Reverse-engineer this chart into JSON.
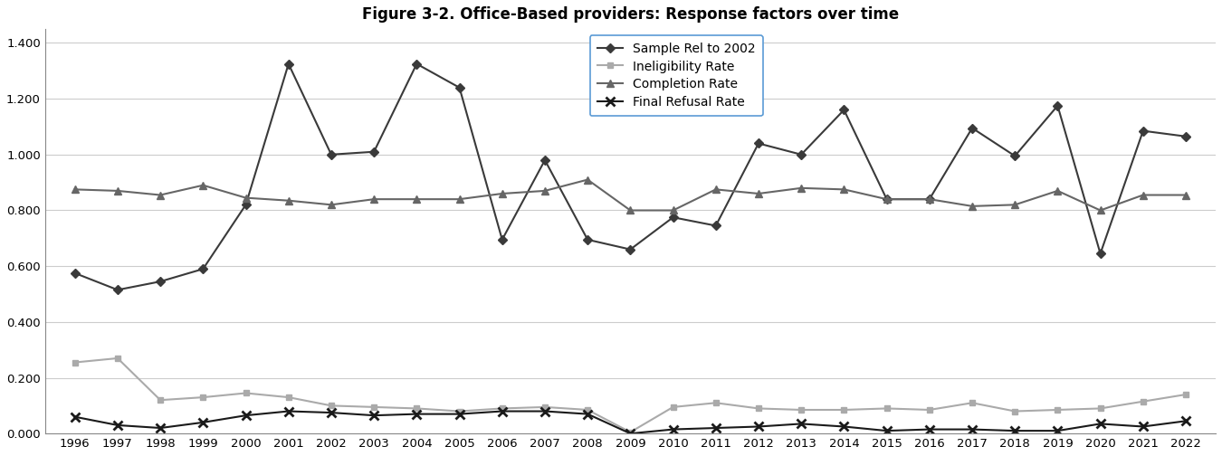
{
  "title": "Figure 3-2. Office-Based providers: Response factors over time",
  "years": [
    1996,
    1997,
    1998,
    1999,
    2000,
    2001,
    2002,
    2003,
    2004,
    2005,
    2006,
    2007,
    2008,
    2009,
    2010,
    2011,
    2012,
    2013,
    2014,
    2015,
    2016,
    2017,
    2018,
    2019,
    2020,
    2021,
    2022
  ],
  "sample_rel": [
    0.575,
    0.515,
    0.545,
    0.59,
    0.82,
    1.325,
    1.0,
    1.01,
    1.325,
    1.24,
    0.695,
    0.98,
    0.695,
    0.66,
    0.775,
    0.745,
    1.04,
    1.0,
    1.16,
    0.84,
    0.84,
    1.095,
    0.995,
    1.175,
    0.645,
    1.085,
    1.065
  ],
  "ineligibility": [
    0.255,
    0.27,
    0.12,
    0.13,
    0.145,
    0.13,
    0.1,
    0.095,
    0.09,
    0.08,
    0.09,
    0.095,
    0.085,
    0.005,
    0.095,
    0.11,
    0.09,
    0.085,
    0.085,
    0.09,
    0.085,
    0.11,
    0.08,
    0.085,
    0.09,
    0.115,
    0.14
  ],
  "completion": [
    0.875,
    0.87,
    0.855,
    0.89,
    0.845,
    0.835,
    0.82,
    0.84,
    0.84,
    0.84,
    0.86,
    0.87,
    0.91,
    0.8,
    0.8,
    0.875,
    0.86,
    0.88,
    0.875,
    0.84,
    0.84,
    0.815,
    0.82,
    0.87,
    0.8,
    0.855,
    0.855
  ],
  "final_refusal": [
    0.06,
    0.03,
    0.02,
    0.04,
    0.065,
    0.08,
    0.075,
    0.065,
    0.07,
    0.07,
    0.08,
    0.08,
    0.07,
    0.0,
    0.015,
    0.02,
    0.025,
    0.035,
    0.025,
    0.01,
    0.015,
    0.015,
    0.01,
    0.01,
    0.035,
    0.025,
    0.045
  ],
  "sample_color": "#3a3a3a",
  "ineligibility_color": "#aaaaaa",
  "completion_color": "#666666",
  "final_refusal_color": "#1a1a1a",
  "ylim_min": 0.0,
  "ylim_max": 1.45,
  "yticks": [
    0.0,
    0.2,
    0.4,
    0.6,
    0.8,
    1.0,
    1.2,
    1.4
  ],
  "ytick_labels": [
    "0.000",
    "0.200",
    "0.400",
    "0.600",
    "0.800",
    "1.000",
    "1.200",
    "1.400"
  ],
  "legend_labels": [
    "Sample Rel to 2002",
    "Ineligibility Rate",
    "Completion Rate",
    "Final Refusal Rate"
  ],
  "background_color": "#ffffff",
  "grid_color": "#cccccc",
  "spine_color": "#888888"
}
